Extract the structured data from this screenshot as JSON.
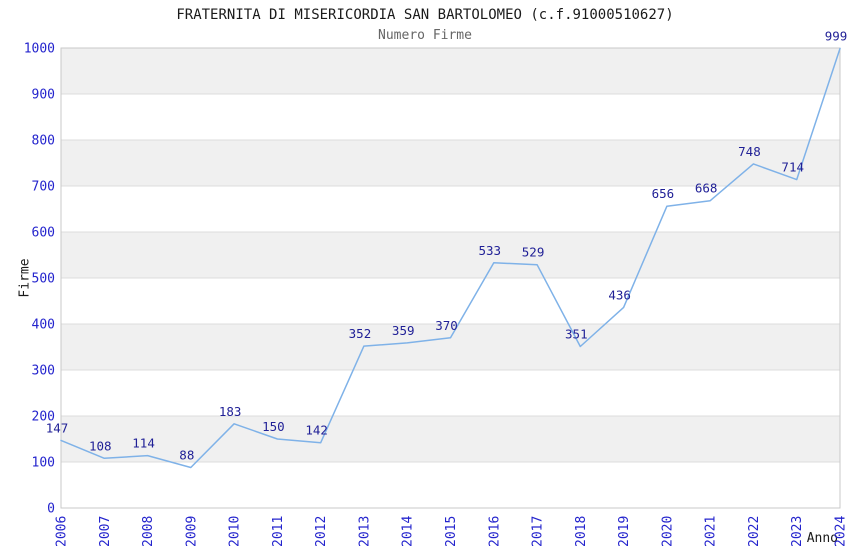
{
  "header": {
    "title": "FRATERNITA DI MISERICORDIA SAN BARTOLOMEO (c.f.91000510627)",
    "subtitle": "Numero Firme"
  },
  "chart_data": {
    "type": "line",
    "x": [
      2006,
      2007,
      2008,
      2009,
      2010,
      2011,
      2012,
      2013,
      2014,
      2015,
      2016,
      2017,
      2018,
      2019,
      2020,
      2021,
      2022,
      2023,
      2024
    ],
    "series": [
      {
        "name": "Numero Firme",
        "values": [
          147,
          108,
          114,
          88,
          183,
          150,
          142,
          352,
          359,
          370,
          533,
          529,
          351,
          436,
          656,
          668,
          748,
          714,
          999
        ]
      }
    ],
    "title": "FRATERNITA DI MISERICORDIA SAN BARTOLOMEO (c.f.91000510627)",
    "subtitle": "Numero Firme",
    "xlabel": "Anno",
    "ylabel": "Firme",
    "ylim": [
      0,
      1000
    ],
    "ytick_step": 100,
    "yticks": [
      0,
      100,
      200,
      300,
      400,
      500,
      600,
      700,
      800,
      900,
      1000
    ],
    "grid": true,
    "legend": "none",
    "data_labels": true,
    "colors": {
      "line": "#7fb2e8",
      "tick_label": "#2424cd",
      "data_label": "#1f1f96",
      "band_fill": "#f0f0f0",
      "band_alt_fill": "#ffffff",
      "gridline": "#dcdcdc",
      "border": "#c9c9c9",
      "title": "#1a1a1a",
      "subtitle": "#666666",
      "axis_label": "#1a1a1a",
      "background": "#ffffff"
    }
  }
}
